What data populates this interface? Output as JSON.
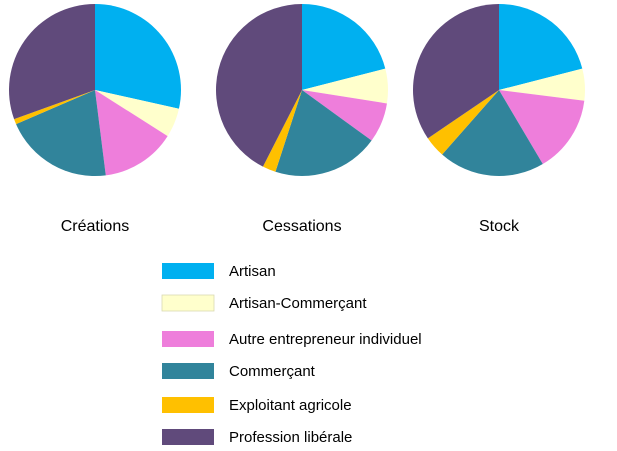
{
  "chart_data": {
    "type": "pie",
    "categories": [
      "Artisan",
      "Artisan-Commerçant",
      "Autre entrepreneur individuel",
      "Commerçant",
      "Exploitant agricole",
      "Profession libérale"
    ],
    "colors": [
      "#00b0f0",
      "#ffffcc",
      "#ee7edb",
      "#31849b",
      "#ffc000",
      "#604a7b"
    ],
    "series": [
      {
        "name": "Créations",
        "values": [
          28.5,
          5.5,
          14,
          20.5,
          1,
          30.5
        ]
      },
      {
        "name": "Cessations",
        "values": [
          21,
          6.5,
          7.5,
          20,
          2.5,
          42.5
        ]
      },
      {
        "name": "Stock",
        "values": [
          21,
          6,
          14.5,
          20,
          4,
          34.5
        ]
      }
    ],
    "start_angle_deg": 0,
    "direction": "clockwise",
    "legend_position": "bottom"
  }
}
